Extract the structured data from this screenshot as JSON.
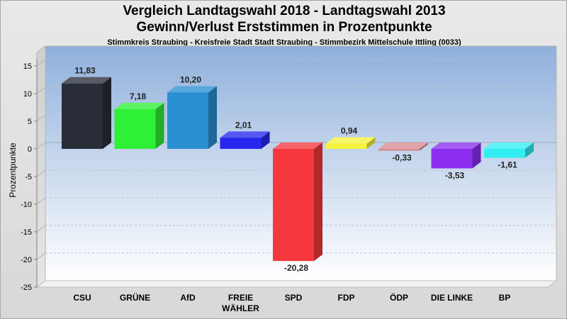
{
  "chart_data": {
    "type": "bar",
    "title": "Vergleich Landtagswahl 2018 - Landtagswahl 2013",
    "subtitle": "Gewinn/Verlust Erststimmen in Prozentpunkte",
    "caption": "Stimmkreis Straubing - Kreisfreie Stadt Stadt Straubing - Stimmbezirk Mittelschule Ittling (0033)",
    "ylabel": "Prozentpunkte",
    "xlabel": "",
    "ylim": [
      -25,
      17
    ],
    "yticks": [
      15,
      10,
      5,
      0,
      -5,
      -10,
      -15,
      -20,
      -25
    ],
    "grid": true,
    "categories": [
      "CSU",
      "GRÜNE",
      "AfD",
      "FREIE WÄHLER",
      "SPD",
      "FDP",
      "ÖDP",
      "DIE LINKE",
      "BP"
    ],
    "category_lines": [
      [
        "CSU"
      ],
      [
        "GRÜNE"
      ],
      [
        "AfD"
      ],
      [
        "FREIE",
        "WÄHLER"
      ],
      [
        "SPD"
      ],
      [
        "FDP"
      ],
      [
        "ÖDP"
      ],
      [
        "DIE LINKE"
      ],
      [
        "BP"
      ]
    ],
    "values": [
      11.83,
      7.18,
      10.2,
      2.01,
      -20.28,
      0.94,
      -0.33,
      -3.53,
      -1.61
    ],
    "value_labels": [
      "11,83",
      "7,18",
      "10,20",
      "2,01",
      "-20,28",
      "0,94",
      "-0,33",
      "-3,53",
      "-1,61"
    ],
    "colors": [
      "#282d38",
      "#2ef036",
      "#2a8fd1",
      "#2626ef",
      "#f5383d",
      "#f4f43a",
      "#d98a8f",
      "#8b2ef0",
      "#30eef2"
    ]
  }
}
